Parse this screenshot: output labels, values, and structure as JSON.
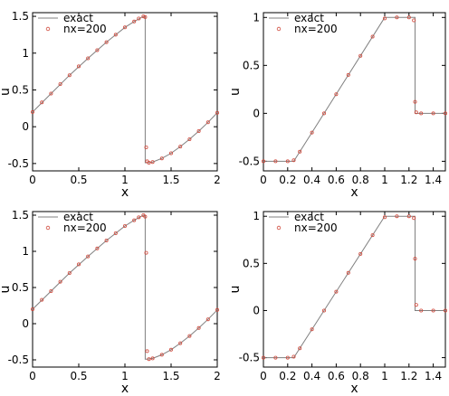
{
  "chart_data": [
    {
      "type": "line",
      "xlabel": "x",
      "ylabel": "u",
      "xlim": [
        0,
        2
      ],
      "ylim": [
        -0.6,
        1.55
      ],
      "xticks": [
        {
          "v": 0,
          "label": "0"
        },
        {
          "v": 0.5,
          "label": "0.5"
        },
        {
          "v": 1,
          "label": "1"
        },
        {
          "v": 1.5,
          "label": "1.5"
        },
        {
          "v": 2,
          "label": "2"
        }
      ],
      "yticks": [
        {
          "v": -0.5,
          "label": "-0.5"
        },
        {
          "v": 0,
          "label": "0"
        },
        {
          "v": 0.5,
          "label": "0.5"
        },
        {
          "v": 1,
          "label": "1"
        },
        {
          "v": 1.5,
          "label": "1.5"
        }
      ],
      "legend": [
        "exact",
        "nx=200"
      ],
      "series": [
        {
          "name": "exact",
          "style": "line",
          "color": "#808080",
          "x": [
            0,
            0.2,
            0.4,
            0.6,
            0.8,
            1.0,
            1.1,
            1.2,
            1.22,
            1.22,
            1.24,
            1.3,
            1.4,
            1.5,
            1.6,
            1.7,
            1.8,
            1.9,
            2.0
          ],
          "y": [
            0.2,
            0.45,
            0.7,
            0.93,
            1.15,
            1.35,
            1.43,
            1.5,
            1.5,
            -0.49,
            -0.49,
            -0.48,
            -0.43,
            -0.36,
            -0.27,
            -0.17,
            -0.06,
            0.06,
            0.19
          ]
        },
        {
          "name": "nx=200",
          "style": "markers",
          "color": "#d14b3e",
          "x": [
            0,
            0.1,
            0.2,
            0.3,
            0.4,
            0.5,
            0.6,
            0.7,
            0.8,
            0.9,
            1.0,
            1.1,
            1.15,
            1.2,
            1.22,
            1.23,
            1.24,
            1.26,
            1.3,
            1.4,
            1.5,
            1.6,
            1.7,
            1.8,
            1.9,
            2.0
          ],
          "y": [
            0.2,
            0.33,
            0.45,
            0.58,
            0.7,
            0.82,
            0.93,
            1.04,
            1.15,
            1.25,
            1.35,
            1.43,
            1.47,
            1.5,
            1.49,
            -0.28,
            -0.47,
            -0.49,
            -0.48,
            -0.43,
            -0.36,
            -0.27,
            -0.17,
            -0.06,
            0.06,
            0.19
          ]
        }
      ]
    },
    {
      "type": "line",
      "xlabel": "x",
      "ylabel": "u",
      "xlim": [
        0,
        1.5
      ],
      "ylim": [
        -0.6,
        1.05
      ],
      "xticks": [
        {
          "v": 0,
          "label": "0"
        },
        {
          "v": 0.2,
          "label": "0.2"
        },
        {
          "v": 0.4,
          "label": "0.4"
        },
        {
          "v": 0.6,
          "label": "0.6"
        },
        {
          "v": 0.8,
          "label": "0.8"
        },
        {
          "v": 1.0,
          "label": "1"
        },
        {
          "v": 1.2,
          "label": "1.2"
        },
        {
          "v": 1.4,
          "label": "1.4"
        }
      ],
      "yticks": [
        {
          "v": -0.5,
          "label": "-0.5"
        },
        {
          "v": 0,
          "label": "0"
        },
        {
          "v": 0.5,
          "label": "0.5"
        },
        {
          "v": 1,
          "label": "1"
        }
      ],
      "legend": [
        "exact",
        "nx=200"
      ],
      "series": [
        {
          "name": "exact",
          "style": "line",
          "color": "#808080",
          "x": [
            0,
            0.25,
            1.0,
            1.25,
            1.25,
            1.5
          ],
          "y": [
            -0.5,
            -0.5,
            1.0,
            1.0,
            0.0,
            0.0
          ]
        },
        {
          "name": "nx=200",
          "style": "markers",
          "color": "#d14b3e",
          "x": [
            0,
            0.1,
            0.2,
            0.25,
            0.3,
            0.4,
            0.5,
            0.6,
            0.7,
            0.8,
            0.9,
            1.0,
            1.1,
            1.2,
            1.24,
            1.25,
            1.26,
            1.3,
            1.4,
            1.5
          ],
          "y": [
            -0.5,
            -0.5,
            -0.5,
            -0.49,
            -0.4,
            -0.2,
            0.0,
            0.2,
            0.4,
            0.6,
            0.8,
            0.99,
            1.0,
            1.0,
            0.97,
            0.12,
            0.01,
            0.0,
            0.0,
            0.0
          ]
        }
      ]
    },
    {
      "type": "line",
      "xlabel": "x",
      "ylabel": "u",
      "xlim": [
        0,
        2
      ],
      "ylim": [
        -0.6,
        1.55
      ],
      "xticks": [
        {
          "v": 0,
          "label": "0"
        },
        {
          "v": 0.5,
          "label": "0.5"
        },
        {
          "v": 1,
          "label": "1"
        },
        {
          "v": 1.5,
          "label": "1.5"
        },
        {
          "v": 2,
          "label": "2"
        }
      ],
      "yticks": [
        {
          "v": -0.5,
          "label": "-0.5"
        },
        {
          "v": 0,
          "label": "0"
        },
        {
          "v": 0.5,
          "label": "0.5"
        },
        {
          "v": 1,
          "label": "1"
        },
        {
          "v": 1.5,
          "label": "1.5"
        }
      ],
      "legend": [
        "exact",
        "nx=200"
      ],
      "series": [
        {
          "name": "exact",
          "style": "line",
          "color": "#808080",
          "x": [
            0,
            0.2,
            0.4,
            0.6,
            0.8,
            1.0,
            1.1,
            1.2,
            1.22,
            1.22,
            1.24,
            1.3,
            1.4,
            1.5,
            1.6,
            1.7,
            1.8,
            1.9,
            2.0
          ],
          "y": [
            0.2,
            0.45,
            0.7,
            0.93,
            1.15,
            1.35,
            1.43,
            1.5,
            1.5,
            -0.49,
            -0.49,
            -0.48,
            -0.43,
            -0.36,
            -0.27,
            -0.17,
            -0.06,
            0.06,
            0.19
          ]
        },
        {
          "name": "nx=200",
          "style": "markers",
          "color": "#d14b3e",
          "x": [
            0,
            0.1,
            0.2,
            0.3,
            0.4,
            0.5,
            0.6,
            0.7,
            0.8,
            0.9,
            1.0,
            1.1,
            1.15,
            1.2,
            1.22,
            1.23,
            1.24,
            1.26,
            1.3,
            1.4,
            1.5,
            1.6,
            1.7,
            1.8,
            1.9,
            2.0
          ],
          "y": [
            0.2,
            0.33,
            0.45,
            0.58,
            0.7,
            0.82,
            0.93,
            1.04,
            1.15,
            1.25,
            1.35,
            1.43,
            1.47,
            1.5,
            1.48,
            0.98,
            -0.38,
            -0.49,
            -0.48,
            -0.43,
            -0.36,
            -0.27,
            -0.17,
            -0.06,
            0.06,
            0.19
          ]
        }
      ]
    },
    {
      "type": "line",
      "xlabel": "x",
      "ylabel": "u",
      "xlim": [
        0,
        1.5
      ],
      "ylim": [
        -0.6,
        1.05
      ],
      "xticks": [
        {
          "v": 0,
          "label": "0"
        },
        {
          "v": 0.2,
          "label": "0.2"
        },
        {
          "v": 0.4,
          "label": "0.4"
        },
        {
          "v": 0.6,
          "label": "0.6"
        },
        {
          "v": 0.8,
          "label": "0.8"
        },
        {
          "v": 1.0,
          "label": "1"
        },
        {
          "v": 1.2,
          "label": "1.2"
        },
        {
          "v": 1.4,
          "label": "1.4"
        }
      ],
      "yticks": [
        {
          "v": -0.5,
          "label": "-0.5"
        },
        {
          "v": 0,
          "label": "0"
        },
        {
          "v": 0.5,
          "label": "0.5"
        },
        {
          "v": 1,
          "label": "1"
        }
      ],
      "legend": [
        "exact",
        "nx=200"
      ],
      "series": [
        {
          "name": "exact",
          "style": "line",
          "color": "#808080",
          "x": [
            0,
            0.25,
            1.0,
            1.25,
            1.25,
            1.5
          ],
          "y": [
            -0.5,
            -0.5,
            1.0,
            1.0,
            0.0,
            0.0
          ]
        },
        {
          "name": "nx=200",
          "style": "markers",
          "color": "#d14b3e",
          "x": [
            0,
            0.1,
            0.2,
            0.25,
            0.3,
            0.4,
            0.5,
            0.6,
            0.7,
            0.8,
            0.9,
            1.0,
            1.1,
            1.2,
            1.24,
            1.25,
            1.26,
            1.3,
            1.4,
            1.5
          ],
          "y": [
            -0.5,
            -0.5,
            -0.5,
            -0.49,
            -0.4,
            -0.2,
            0.0,
            0.2,
            0.4,
            0.6,
            0.8,
            0.99,
            1.0,
            1.0,
            0.98,
            0.55,
            0.06,
            0.0,
            0.0,
            0.0
          ]
        }
      ]
    }
  ]
}
